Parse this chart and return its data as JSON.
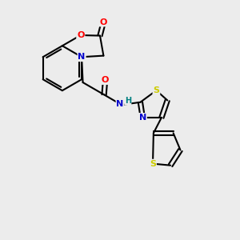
{
  "background_color": "#ececec",
  "atom_colors": {
    "C": "#000000",
    "N": "#0000cc",
    "O": "#ff0000",
    "S": "#cccc00",
    "H": "#008080"
  },
  "figsize": [
    3.0,
    3.0
  ],
  "dpi": 100,
  "lw": 1.5
}
